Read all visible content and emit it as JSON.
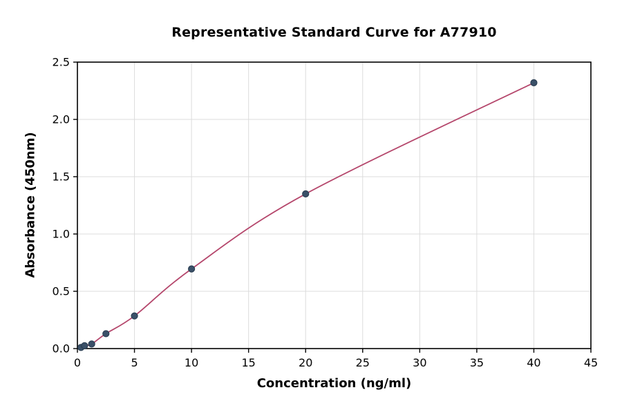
{
  "figure": {
    "background": "#ffffff"
  },
  "chart_data": {
    "type": "scatter",
    "title": "Representative Standard Curve for A77910",
    "xlabel": "Concentration (ng/ml)",
    "ylabel": "Absorbance (450nm)",
    "x": [
      0.313,
      0.625,
      1.25,
      2.5,
      5,
      10,
      20,
      40
    ],
    "y": [
      0.01,
      0.025,
      0.04,
      0.13,
      0.285,
      0.695,
      1.35,
      2.32
    ],
    "xlim": [
      0,
      45
    ],
    "ylim": [
      0,
      2.5
    ],
    "xticks": [
      0,
      5,
      10,
      15,
      20,
      25,
      30,
      35,
      40,
      45
    ],
    "xtick_labels": [
      "0",
      "5",
      "10",
      "15",
      "20",
      "25",
      "30",
      "35",
      "40",
      "45"
    ],
    "yticks": [
      0,
      0.5,
      1.0,
      1.5,
      2.0,
      2.5
    ],
    "ytick_labels": [
      "0.0",
      "0.5",
      "1.0",
      "1.5",
      "2.0",
      "2.5"
    ],
    "grid": true,
    "legend": "none",
    "colors": {
      "line": "#b5476c",
      "point": "#3a5068",
      "point_edge": "#273a4e",
      "grid": "#dcdcdc",
      "axis": "#000000"
    }
  }
}
